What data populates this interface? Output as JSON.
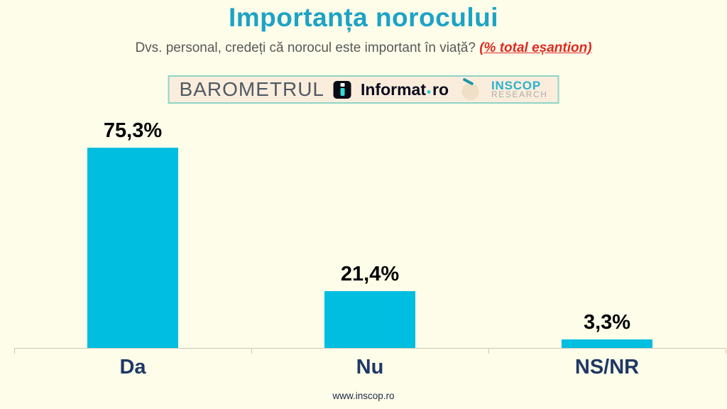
{
  "page": {
    "title": "Importanța norocului",
    "subtitle": "Dvs. personal, credeți că norocul este important în viață?",
    "subtitle_highlight": "(% total eșantion)",
    "footer": "www.inscop.ro"
  },
  "logo_banner": {
    "barometrul": "BAROMETRUL",
    "informat_name": "Informat",
    "informat_tld": "ro",
    "inscop": "INSCOP",
    "research": "RESEARCH"
  },
  "chart_data": {
    "type": "bar",
    "title": "Importanța norocului",
    "subtitle": "Dvs. personal, credeți că norocul este important în viață? (% total eșantion)",
    "categories": [
      "Da",
      "Nu",
      "NS/NR"
    ],
    "values": [
      75.3,
      21.4,
      3.3
    ],
    "value_labels": [
      "75,3%",
      "21,4%",
      "3,3%"
    ],
    "xlabel": "",
    "ylabel": "",
    "ylim": [
      0,
      100
    ],
    "grid": false,
    "legend": false,
    "bar_color": "#00BEE0",
    "value_label_color": "#000000",
    "category_label_color": "#1F3864",
    "axis_color": "#C9C9BA"
  },
  "colors": {
    "background": "#FDFDE9",
    "title": "#1CA3C6",
    "subtitle_gray": "#595959",
    "highlight_red": "#DE2A20",
    "banner_bg": "#FBEDDC",
    "banner_border": "#8FD5C6",
    "category_navy": "#1F3864"
  }
}
